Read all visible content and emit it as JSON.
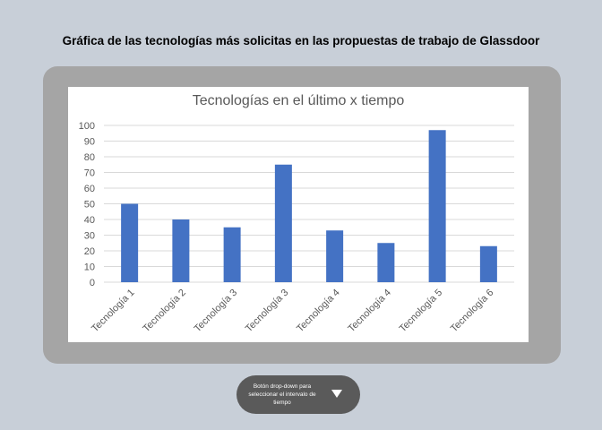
{
  "page": {
    "title": "Gráfica de las tecnologías más solicitas en las propuestas de trabajo de Glassdoor"
  },
  "dropdown": {
    "label": "Botón drop-down para seleccionar el intervalo de tiempo",
    "icon": "caret-down-icon"
  },
  "colors": {
    "bar": "#4472c4",
    "frame": "#a5a5a5",
    "background": "#c8cfd8",
    "dropdown": "#5a5a5a"
  },
  "chart_data": {
    "type": "bar",
    "title": "Tecnologías en el último x tiempo",
    "xlabel": "",
    "ylabel": "",
    "categories": [
      "Tecnología 1",
      "Tecnología 2",
      "Tecnología 3",
      "Tecnología 3",
      "Tecnología 4",
      "Tecnología 4",
      "Tecnología 5",
      "Tecnología 6"
    ],
    "values": [
      50,
      40,
      35,
      75,
      33,
      25,
      97,
      23
    ],
    "ylim": [
      0,
      100
    ],
    "yticks": [
      0,
      10,
      20,
      30,
      40,
      50,
      60,
      70,
      80,
      90,
      100
    ],
    "grid": true,
    "legend": "none"
  }
}
